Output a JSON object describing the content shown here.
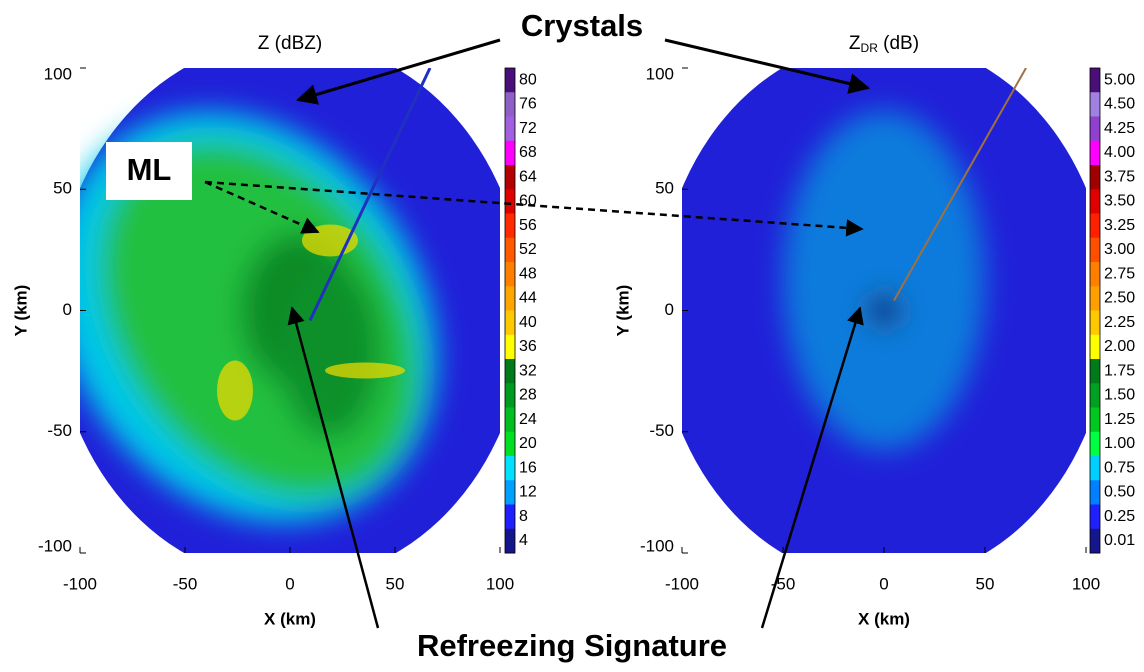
{
  "annotations": {
    "top": "Crystals",
    "left": "ML",
    "bottom": "Refreezing Signature"
  },
  "chart_data": [
    {
      "type": "radar-ppi",
      "title": "Z (dBZ)",
      "xlabel": "X (km)",
      "ylabel": "Y (km)",
      "xlim": [
        -100,
        100
      ],
      "ylim": [
        -100,
        100
      ],
      "xticks": [
        -100,
        -50,
        0,
        50,
        100
      ],
      "yticks": [
        -100,
        -50,
        0,
        50,
        100
      ],
      "colorbar": {
        "ticks": [
          80,
          76,
          72,
          68,
          64,
          60,
          56,
          52,
          48,
          44,
          40,
          36,
          32,
          28,
          24,
          20,
          16,
          12,
          8,
          4
        ],
        "colors": [
          "#4b0f7a",
          "#8f5fc8",
          "#a060e0",
          "#ff00ff",
          "#b40000",
          "#e00000",
          "#ff2a00",
          "#ff5a00",
          "#ff8000",
          "#ffa500",
          "#ffc800",
          "#ffff00",
          "#007a1a",
          "#009a20",
          "#00be20",
          "#00e020",
          "#00e0ff",
          "#00a0ff",
          "#2020ff",
          "#16168c"
        ]
      }
    },
    {
      "type": "radar-ppi",
      "title": "Z",
      "title_subscript": "DR",
      "title_suffix": " (dB)",
      "xlabel": "X (km)",
      "ylabel": "Y (km)",
      "xlim": [
        -100,
        100
      ],
      "ylim": [
        -100,
        100
      ],
      "xticks": [
        -100,
        -50,
        0,
        50,
        100
      ],
      "yticks": [
        -100,
        -50,
        0,
        50,
        100
      ],
      "colorbar": {
        "ticks": [
          {
            "value": 5,
            "label": "5.00"
          },
          {
            "value": 4.5,
            "label": "4.50"
          },
          4.25,
          {
            "value": 4,
            "label": "4.00"
          },
          3.75,
          {
            "value": 3.5,
            "label": "3.50"
          },
          3.25,
          {
            "value": 3,
            "label": "3.00"
          },
          2.75,
          {
            "value": 2.5,
            "label": "2.50"
          },
          2.25,
          {
            "value": 2,
            "label": "2.00"
          },
          1.75,
          {
            "value": 1.5,
            "label": "1.50"
          },
          1.25,
          {
            "value": 1,
            "label": "1.00"
          },
          0.75,
          {
            "value": 0.5,
            "label": "0.50"
          },
          0.25,
          0.01
        ],
        "colors": [
          "#4b0f7a",
          "#a080e0",
          "#9040d0",
          "#ff00ff",
          "#a00000",
          "#e00000",
          "#ff2000",
          "#ff5000",
          "#ff8000",
          "#ffa000",
          "#ffc800",
          "#ffff00",
          "#007a1a",
          "#00a020",
          "#00c820",
          "#00ff40",
          "#00d0ff",
          "#0080ff",
          "#2020ff",
          "#16168c"
        ]
      }
    }
  ]
}
